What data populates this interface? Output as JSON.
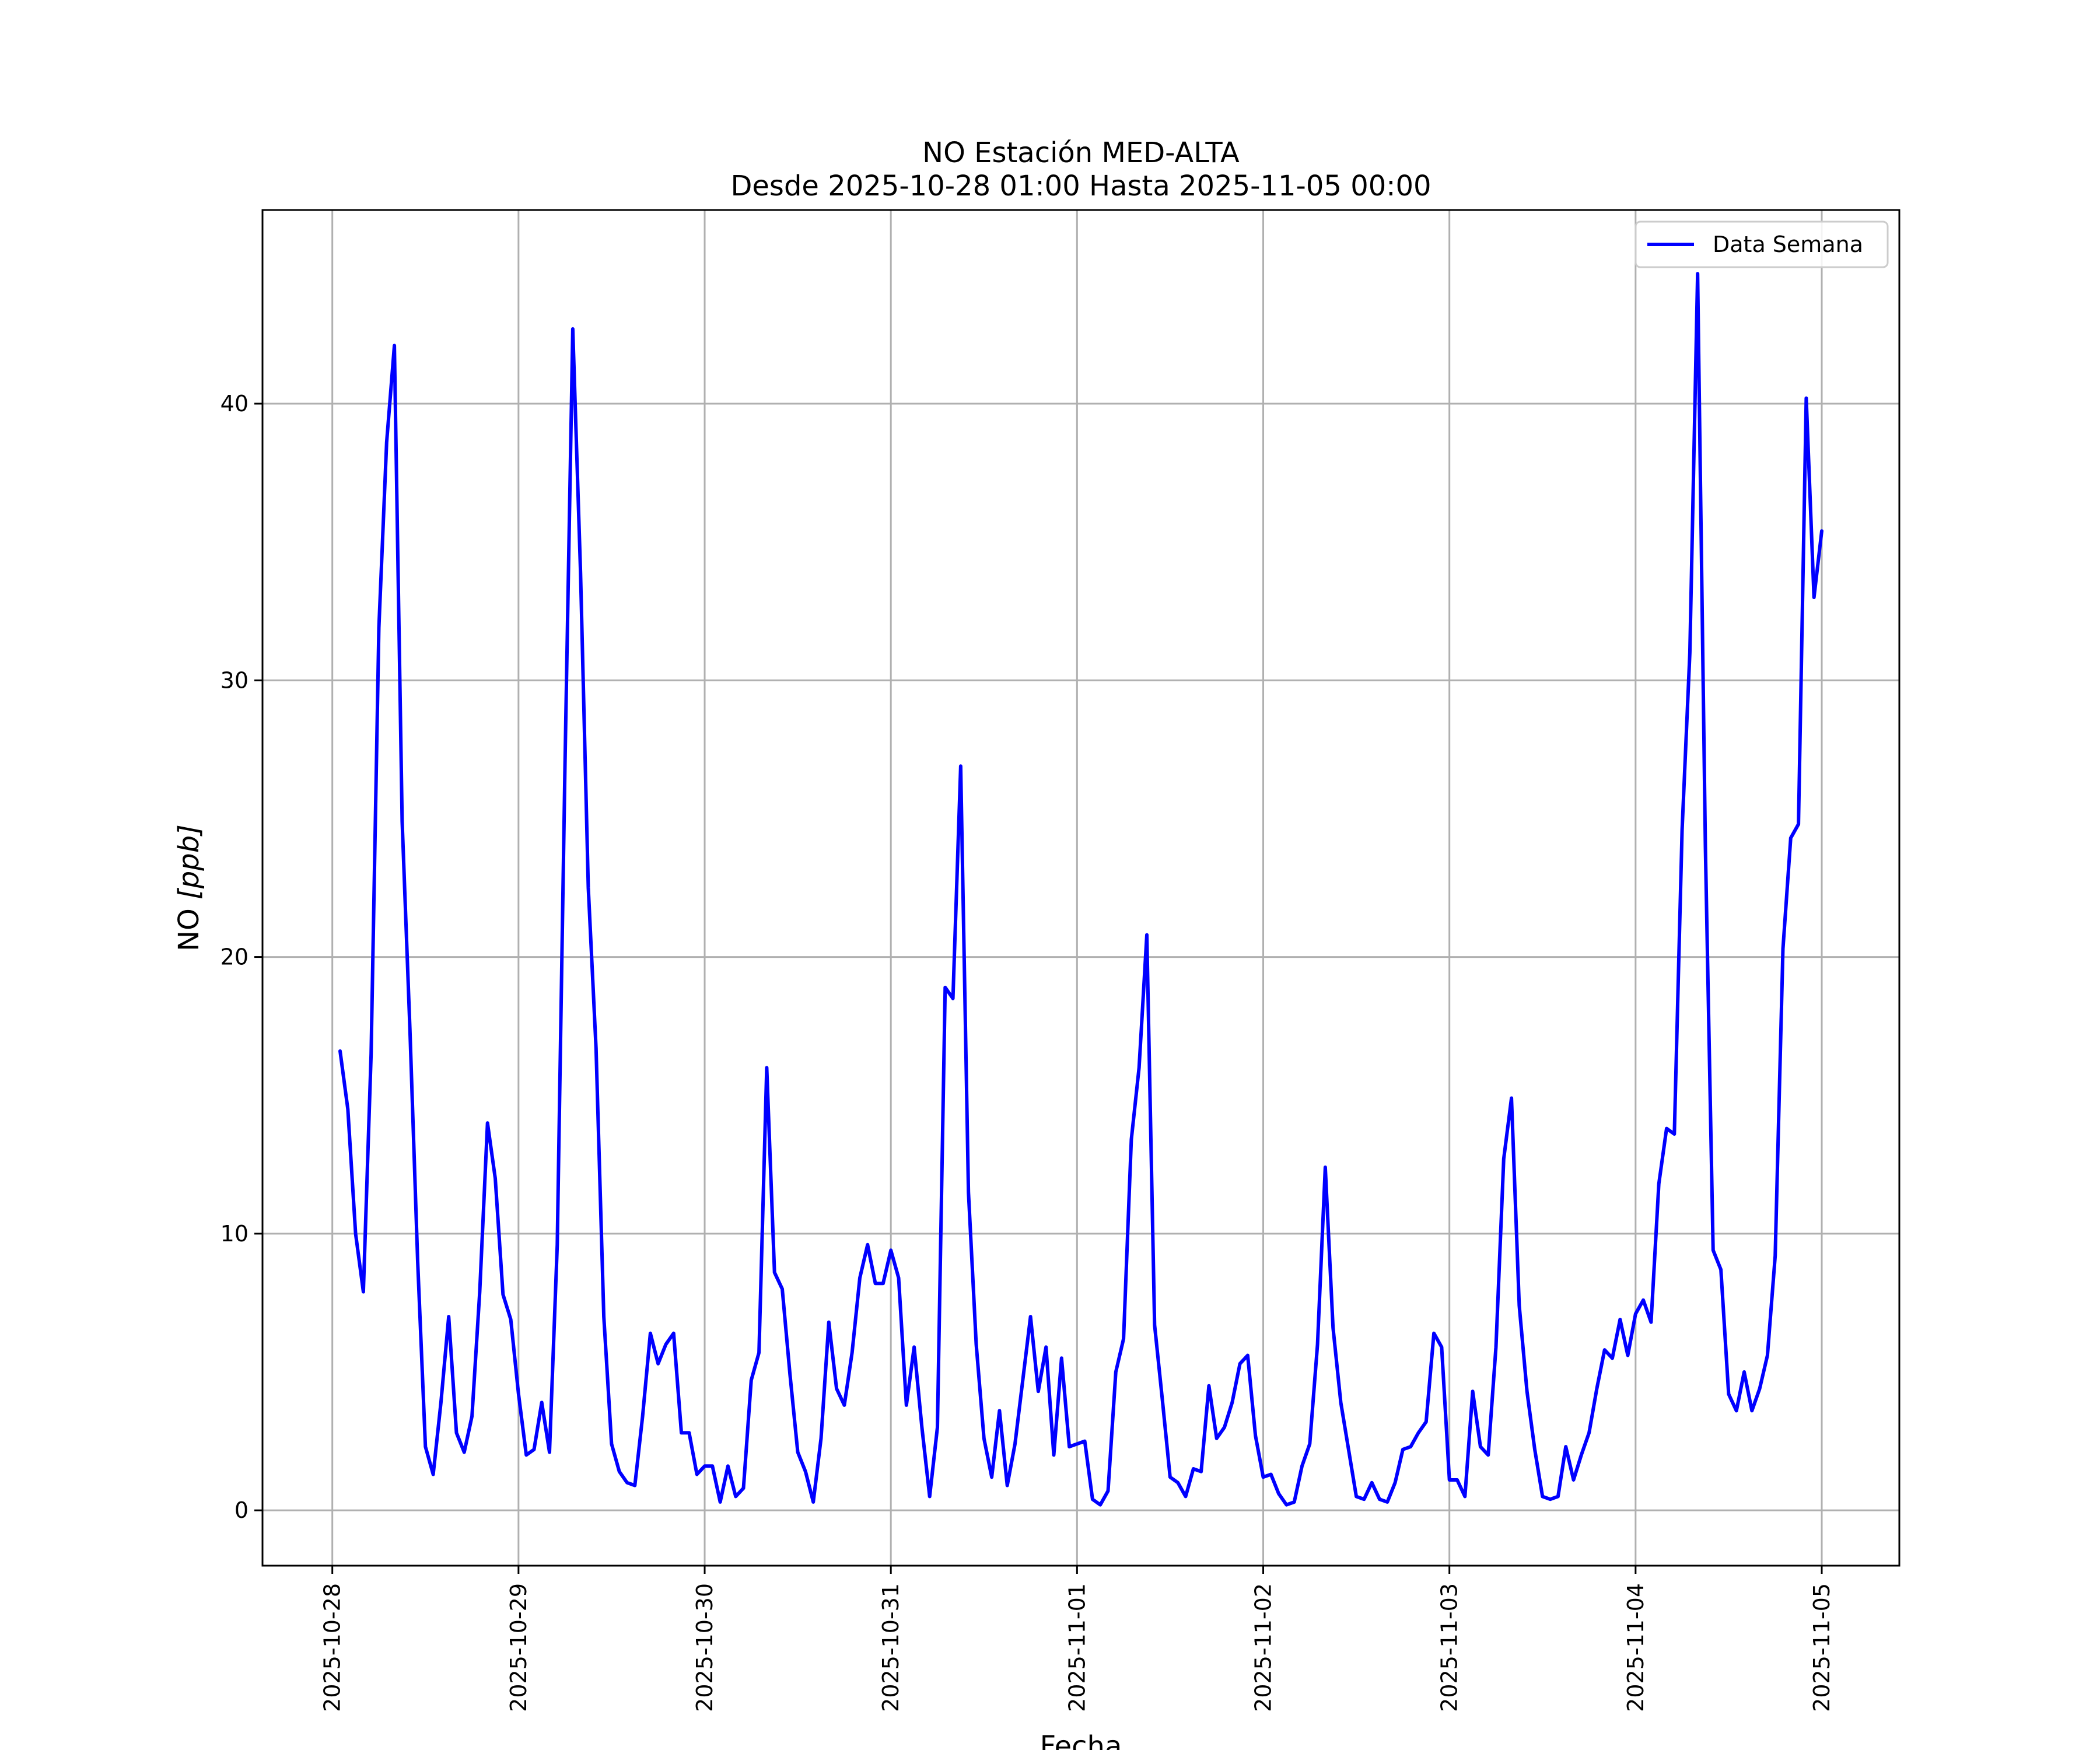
{
  "chart_data": {
    "type": "line",
    "title": "NO Estación MED-ALTA",
    "subtitle": "Desde 2025-10-28 01:00 Hasta 2025-11-05 00:00",
    "xlabel": "Fecha",
    "ylabel_main": "NO ",
    "ylabel_unit": "[ppb]",
    "x_tick_labels": [
      "2025-10-28",
      "2025-10-29",
      "2025-10-30",
      "2025-10-31",
      "2025-11-01",
      "2025-11-02",
      "2025-11-03",
      "2025-11-04",
      "2025-11-05"
    ],
    "y_tick_values": [
      0,
      10,
      20,
      30,
      40
    ],
    "y_tick_labels": [
      "0",
      "10",
      "20",
      "30",
      "40"
    ],
    "xlim": [
      "2025-10-27 15:00",
      "2025-11-05 10:00"
    ],
    "ylim": [
      -2,
      47
    ],
    "grid": true,
    "legend_position": "top-right",
    "series": [
      {
        "name": "Data Semana",
        "color": "#0000ff",
        "start": "2025-10-28 01:00",
        "step_hours": 1,
        "values": [
          16.6,
          14.5,
          10.0,
          7.9,
          16.5,
          31.9,
          38.6,
          42.1,
          24.9,
          17.4,
          9.0,
          2.3,
          1.3,
          3.9,
          7.0,
          2.8,
          2.1,
          3.4,
          7.9,
          14.0,
          12.0,
          7.8,
          6.9,
          4.2,
          2.0,
          2.2,
          3.9,
          2.1,
          9.6,
          27.0,
          42.7,
          33.9,
          22.5,
          16.7,
          7.0,
          2.4,
          1.4,
          1.0,
          0.9,
          3.4,
          6.4,
          5.3,
          6.0,
          6.4,
          2.8,
          2.8,
          1.3,
          1.6,
          1.6,
          0.3,
          1.6,
          0.5,
          0.8,
          4.7,
          5.7,
          16.0,
          8.6,
          8.0,
          4.9,
          2.1,
          1.4,
          0.3,
          2.6,
          6.8,
          4.4,
          3.8,
          5.7,
          8.4,
          9.6,
          8.2,
          8.2,
          9.4,
          8.4,
          3.8,
          5.9,
          3.0,
          0.5,
          3.0,
          18.9,
          18.5,
          26.9,
          11.5,
          6.0,
          2.6,
          1.2,
          3.6,
          0.9,
          2.4,
          4.7,
          7.0,
          4.3,
          5.9,
          2.0,
          5.5,
          2.3,
          2.4,
          2.5,
          0.4,
          0.2,
          0.7,
          5.0,
          6.2,
          13.4,
          16.0,
          20.8,
          6.7,
          4.0,
          1.2,
          1.0,
          0.5,
          1.5,
          1.4,
          4.5,
          2.6,
          3.0,
          3.9,
          5.3,
          5.6,
          2.7,
          1.2,
          1.3,
          0.6,
          0.2,
          0.3,
          1.6,
          2.4,
          6.0,
          12.4,
          6.6,
          3.9,
          2.2,
          0.5,
          0.4,
          1.0,
          0.4,
          0.3,
          1.0,
          2.2,
          2.3,
          2.8,
          3.2,
          6.4,
          5.9,
          1.1,
          1.1,
          0.5,
          4.3,
          2.3,
          2.0,
          5.9,
          12.7,
          14.9,
          7.4,
          4.3,
          2.2,
          0.5,
          0.4,
          0.5,
          2.3,
          1.1,
          2.0,
          2.8,
          4.4,
          5.8,
          5.5,
          6.9,
          5.6,
          7.1,
          7.6,
          6.8,
          11.8,
          13.8,
          13.6,
          24.6,
          31.0,
          44.7,
          24.0,
          9.4,
          8.7,
          4.2,
          3.6,
          5.0,
          3.6,
          4.4,
          5.6,
          9.2,
          20.3,
          24.3,
          24.8,
          40.2,
          33.0,
          35.4
        ]
      }
    ]
  }
}
